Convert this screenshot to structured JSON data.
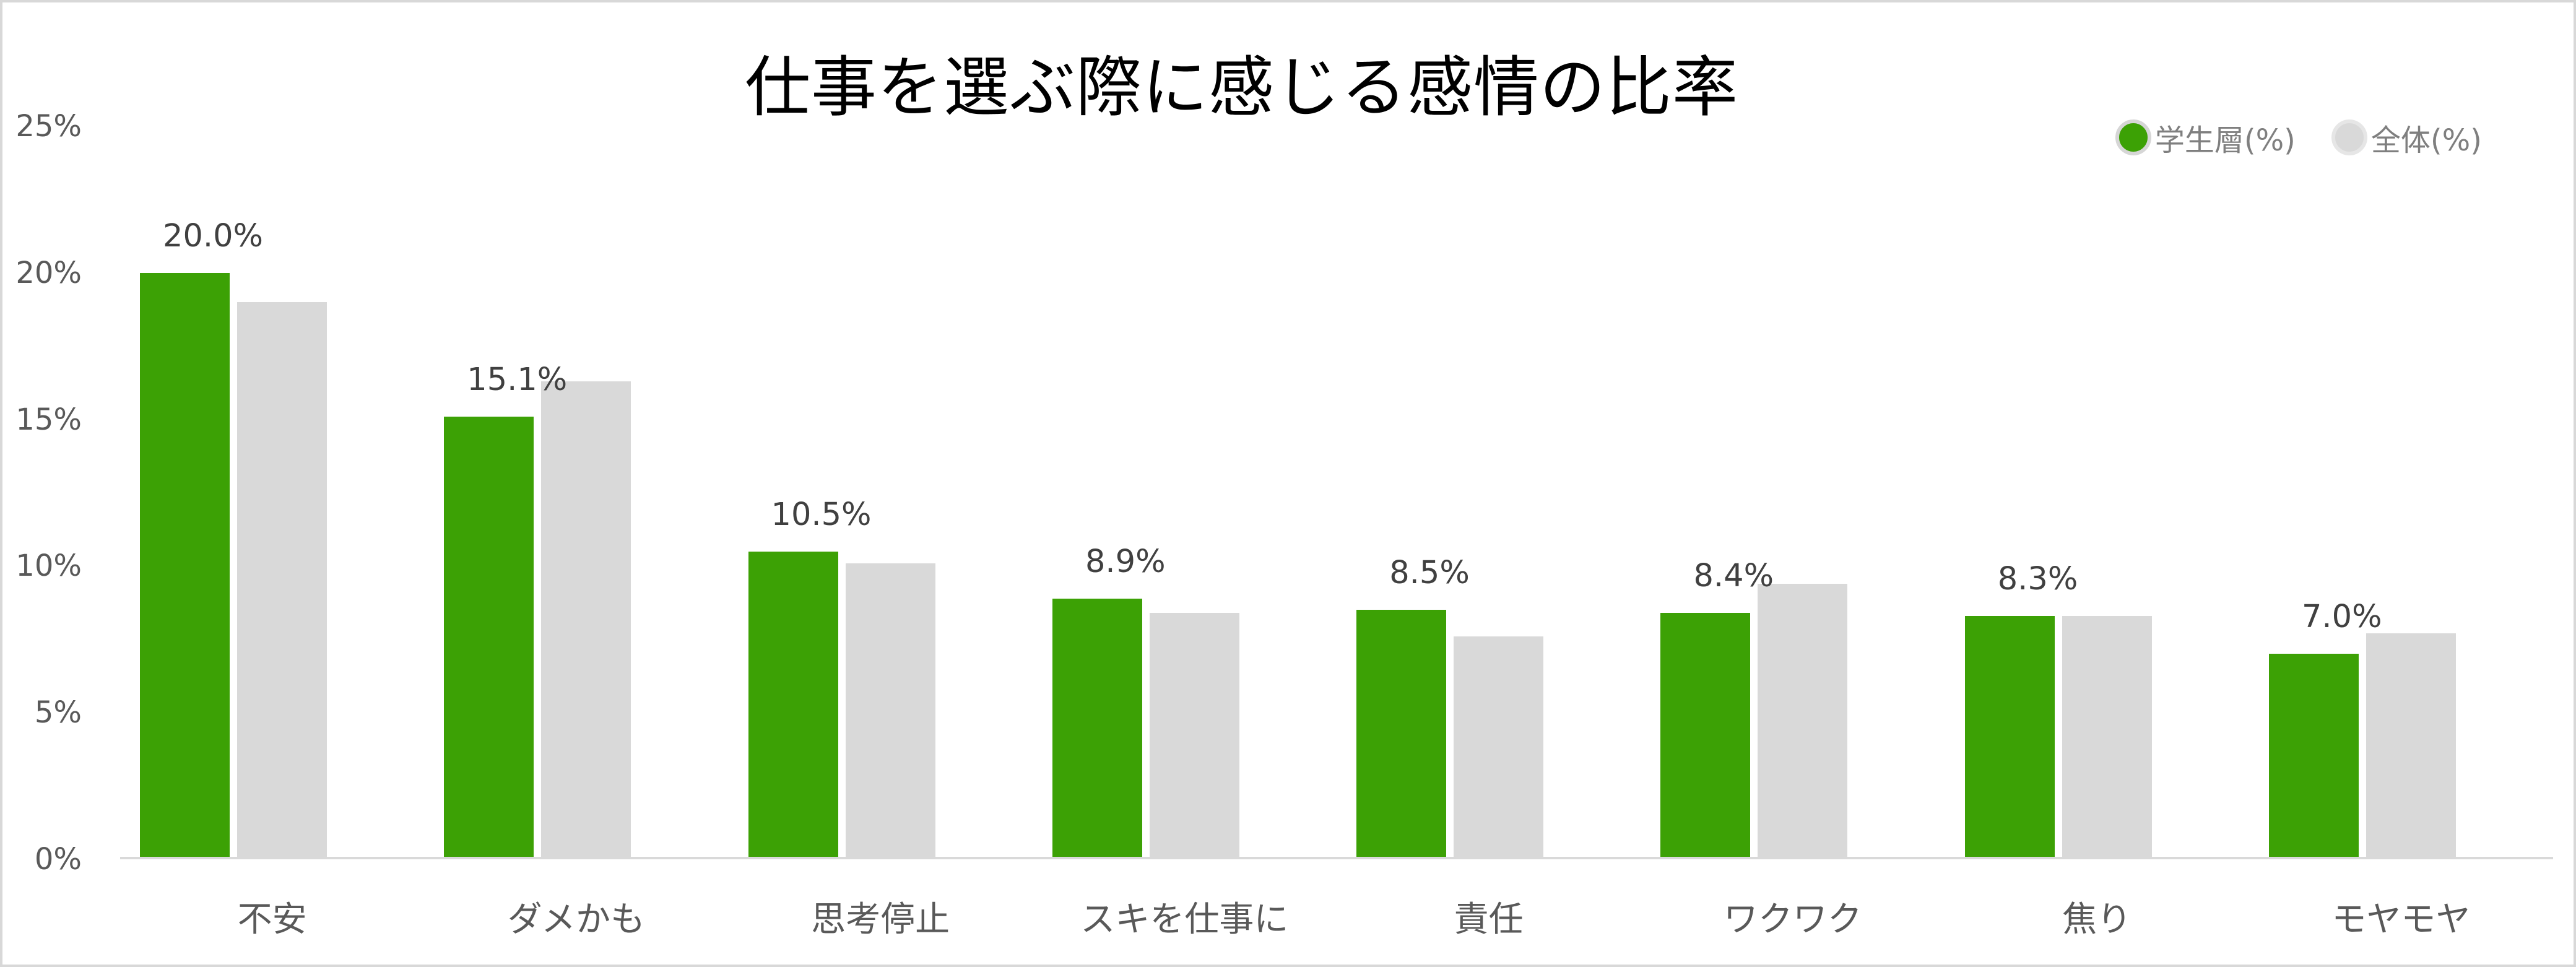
{
  "title": "仕事を選ぶ際に感じる感情の比率",
  "legend": {
    "items": [
      {
        "label": "学生層(%)",
        "color": "#3CA105",
        "ring_color": "#D6D6D6"
      },
      {
        "label": "全体(%)",
        "color": "#D9D9D9",
        "ring_color": "#E6E6E6"
      }
    ],
    "position": "top-right"
  },
  "y_axis": {
    "tick_labels": [
      "0%",
      "5%",
      "10%",
      "15%",
      "20%",
      "25%"
    ],
    "tick_values": [
      0,
      5,
      10,
      15,
      20,
      25
    ]
  },
  "chart_data": {
    "type": "bar",
    "title": "仕事を選ぶ際に感じる感情の比率",
    "categories": [
      "不安",
      "ダメかも",
      "思考停止",
      "スキを仕事に",
      "責任",
      "ワクワク",
      "焦り",
      "モヤモヤ"
    ],
    "series": [
      {
        "name": "学生層(%)",
        "color": "#3CA105",
        "values": [
          20.0,
          15.1,
          10.5,
          8.9,
          8.5,
          8.4,
          8.3,
          7.0
        ],
        "data_labels": [
          "20.0%",
          "15.1%",
          "10.5%",
          "8.9%",
          "8.5%",
          "8.4%",
          "8.3%",
          "7.0%"
        ]
      },
      {
        "name": "全体(%)",
        "color": "#D9D9D9",
        "values": [
          19.0,
          16.3,
          10.1,
          8.4,
          7.6,
          9.4,
          8.3,
          7.7
        ],
        "data_labels": []
      }
    ],
    "xlabel": "",
    "ylabel": "",
    "ylim": [
      0,
      25
    ],
    "yticks": [
      0,
      5,
      10,
      15,
      20,
      25
    ],
    "grid": false,
    "legend_position": "top-right"
  },
  "colors": {
    "background": "#FFFFFF",
    "frame_border": "#D8D8D8",
    "axis_line": "#D9D9D9",
    "tick_label": "#595959",
    "category_label": "#595959",
    "data_label": "#404040",
    "legend_text": "#7F7F7F",
    "title": "#000000"
  }
}
